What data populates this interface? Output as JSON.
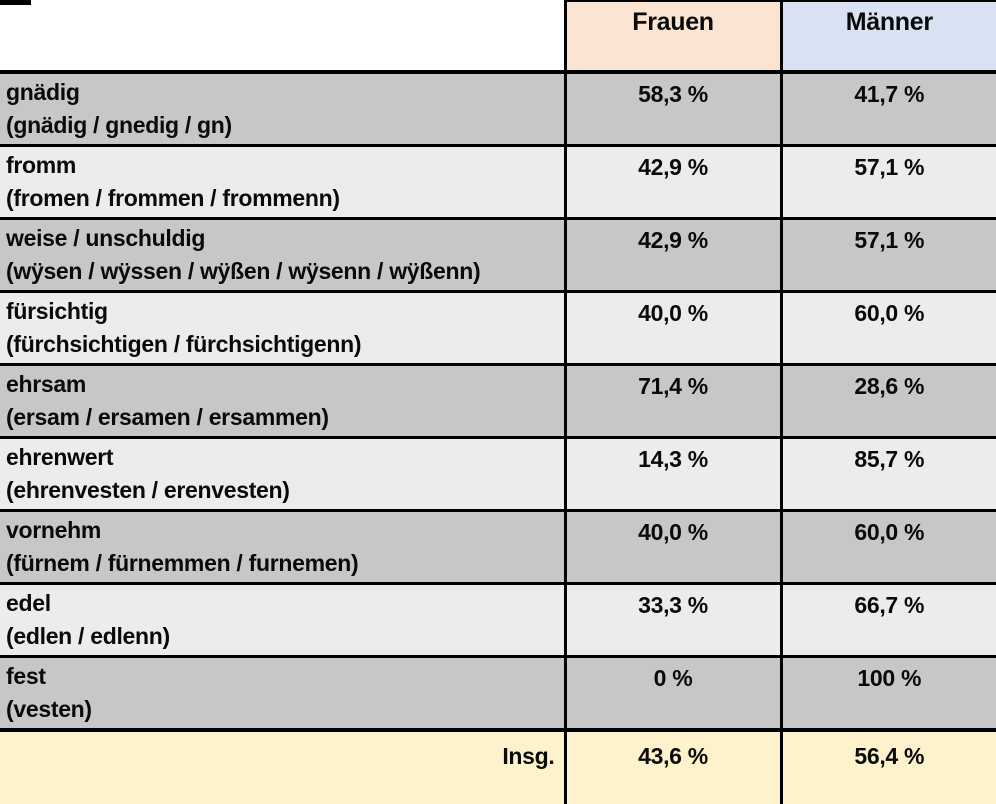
{
  "table": {
    "header": {
      "term_col": "",
      "frauen": "Frauen",
      "maenner": "Männer"
    },
    "rows": [
      {
        "term": "gnädig",
        "variants": "(gnädig / gnedig / gn)",
        "frauen": "58,3 %",
        "maenner": "41,7 %"
      },
      {
        "term": "fromm",
        "variants": "(fromen / frommen / frommenn)",
        "frauen": "42,9 %",
        "maenner": "57,1 %"
      },
      {
        "term": "weise / unschuldig",
        "variants": "(wÿsen / wÿssen / wÿßen / wÿsenn / wÿßenn)",
        "frauen": "42,9 %",
        "maenner": "57,1 %"
      },
      {
        "term": "fürsichtig",
        "variants": "(fürchsichtigen / fürchsichtigenn)",
        "frauen": "40,0 %",
        "maenner": "60,0 %"
      },
      {
        "term": "ehrsam",
        "variants": "(ersam / ersamen / ersammen)",
        "frauen": "71,4 %",
        "maenner": "28,6 %"
      },
      {
        "term": "ehrenwert",
        "variants": "(ehrenvesten / erenvesten)",
        "frauen": "14,3 %",
        "maenner": "85,7 %"
      },
      {
        "term": "vornehm",
        "variants": "(fürnem / fürnemmen / furnemen)",
        "frauen": "40,0 %",
        "maenner": "60,0 %"
      },
      {
        "term": "edel",
        "variants": "(edlen / edlenn)",
        "frauen": "33,3 %",
        "maenner": "66,7 %"
      },
      {
        "term": "fest",
        "variants": "(vesten)",
        "frauen": "0 %",
        "maenner": "100 %"
      }
    ],
    "footer": {
      "label": "Insg.",
      "frauen": "43,6 %",
      "maenner": "56,4 %"
    }
  },
  "colors": {
    "frauen_header_bg": "#fbe5d2",
    "maenner_header_bg": "#d9e2f2",
    "row_dark_bg": "#c7c7c7",
    "row_light_bg": "#ececec",
    "footer_bg": "#fdf2cc",
    "border": "#000000",
    "text": "#0a0a0a"
  }
}
